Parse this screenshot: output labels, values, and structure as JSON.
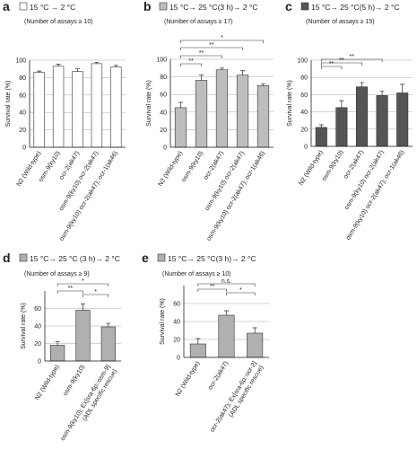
{
  "chart_data": [
    {
      "type": "bar",
      "panel": "a",
      "title": "15 °C → 2 °C",
      "subtitle": "(Number of assays ≥ 10)",
      "y_label": "Survival rate (%)",
      "categories": [
        "N2 (Wild-type)",
        "osm-9(ky10)",
        "ocr-2(ak47)",
        "osm-9(ky10) ocr-2(ak47)",
        "osm-9(ky10) ocr-2(ak47); ocr-1(ak46)"
      ],
      "values": [
        86,
        93,
        87,
        96,
        92
      ],
      "errors": [
        1.5,
        2.5,
        3,
        1.5,
        2
      ],
      "color": "#ffffff",
      "ylim": [
        0,
        100
      ],
      "yticks": [
        0,
        20,
        40,
        60,
        80,
        100
      ],
      "grid": true,
      "annotations": []
    },
    {
      "type": "bar",
      "panel": "b",
      "title": "15 °C→ 25 °C(3 h)→ 2 °C",
      "subtitle": "(Number of assays ≥ 17)",
      "y_label": "Survival rate (%)",
      "categories": [
        "N2 (Wild-type)",
        "osm-9(ky10)",
        "ocr-2(ak47)",
        "osm-9(ky10) ocr-2(ak47)",
        "osm-9(ky10) ocr-2(ak47); ocr-1(ak46)"
      ],
      "values": [
        45,
        76,
        88,
        82,
        70
      ],
      "errors": [
        6,
        6,
        2,
        5,
        2
      ],
      "color": "#bdbdbd",
      "ylim": [
        0,
        100
      ],
      "yticks": [
        0,
        20,
        40,
        60,
        80,
        100
      ],
      "grid": true,
      "annotations": [
        "*",
        "**",
        "**",
        "**"
      ]
    },
    {
      "type": "bar",
      "panel": "c",
      "title": "15 °C→ 25 °C(5 h)→ 2 °C",
      "subtitle": "(Number of assays ≥ 15)",
      "y_label": "Survival rate (%)",
      "categories": [
        "N2 (Wild-type)",
        "osm-9(ky10)",
        "ocr-2(ak47)",
        "osm-9(ky10) ocr-2(ak47)",
        "osm-9(ky10) ocr-2(ak47); ocr-1(ak46)"
      ],
      "values": [
        22,
        45,
        69,
        59,
        62
      ],
      "errors": [
        3,
        8,
        5,
        5,
        10
      ],
      "color": "#555555",
      "ylim": [
        0,
        100
      ],
      "yticks": [
        0,
        20,
        40,
        60,
        80,
        100
      ],
      "grid": true,
      "annotations": [
        "**",
        "**",
        "**"
      ]
    },
    {
      "type": "bar",
      "panel": "d",
      "title": "15 °C→ 25 °C (3 h)→ 2 °C",
      "subtitle": "(Number of assays ≥ 9)",
      "y_label": "Survival rate (%)",
      "categories": [
        "N2 (Wild-type)",
        "osm-9(ky10)",
        [
          "osm-9(ky10); Ex[sra-6p::osm-9]",
          "(ADL specific rescue)"
        ]
      ],
      "values": [
        18,
        58,
        39
      ],
      "errors": [
        4,
        7,
        4
      ],
      "color": "#b0b0b0",
      "ylim": [
        0,
        80
      ],
      "yticks": [
        0,
        20,
        40,
        60
      ],
      "grid": true,
      "annotations": [
        "*",
        "**",
        "*"
      ]
    },
    {
      "type": "bar",
      "panel": "e",
      "title": "15 °C→ 25 °C(3 h)→ 2 °C",
      "subtitle": "(Number of assays ≥ 10)",
      "y_label": "Survival rate (%)",
      "categories": [
        "N2 (Wild-type)",
        "ocr-2(ak47)",
        [
          "ocr-2(ak47); Ex[sra-6p::ocr-2]",
          "(ADL specific rescue)"
        ]
      ],
      "values": [
        15,
        47,
        27
      ],
      "errors": [
        6,
        5,
        6
      ],
      "color": "#b0b0b0",
      "ylim": [
        0,
        80
      ],
      "yticks": [
        0,
        20,
        40,
        60
      ],
      "grid": true,
      "annotations": [
        "n.s.",
        "**",
        "*"
      ]
    }
  ]
}
